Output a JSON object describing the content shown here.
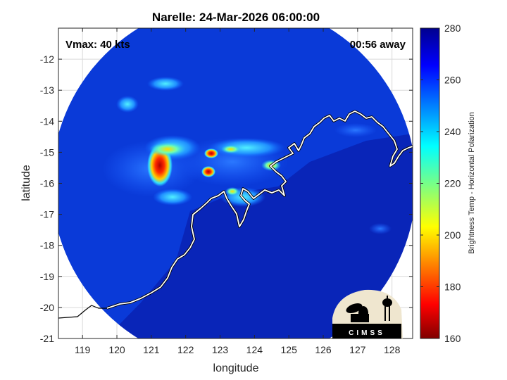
{
  "chart_data": {
    "type": "heatmap",
    "title": "Narelle: 24-Mar-2026 06:00:00",
    "xlabel": "longitude",
    "ylabel": "latitude",
    "xlim": [
      118.3,
      128.6
    ],
    "ylim": [
      -21,
      -11
    ],
    "x_ticks": [
      119,
      120,
      121,
      122,
      123,
      124,
      125,
      126,
      127,
      128
    ],
    "y_ticks": [
      -12,
      -13,
      -14,
      -15,
      -16,
      -17,
      -18,
      -19,
      -20,
      -21
    ],
    "colorbar": {
      "label": "Brightness Temp - Horizontal Polarization",
      "min": 160,
      "max": 280,
      "ticks": [
        160,
        180,
        200,
        220,
        240,
        260,
        280
      ],
      "colormap": "jet"
    },
    "annotations": {
      "vmax": "Vmax: 40 kts",
      "time_away": "00:56 away"
    },
    "swath": {
      "center_lon": 123.4,
      "center_lat": -16.0,
      "radius_deg": 5.3
    },
    "features": [
      {
        "name": "cold core west",
        "lon": 121.2,
        "lat": -15.5,
        "value": 175
      },
      {
        "name": "band north",
        "lon": 121.0,
        "lat": -15.0,
        "value": 215
      },
      {
        "name": "cell central",
        "lon": 122.6,
        "lat": -15.8,
        "value": 190
      },
      {
        "name": "cell east",
        "lon": 123.2,
        "lat": -15.0,
        "value": 205
      },
      {
        "name": "convection northwest",
        "lon": 120.2,
        "lat": -13.5,
        "value": 235
      },
      {
        "name": "convection north",
        "lon": 121.6,
        "lat": -12.8,
        "value": 240
      }
    ],
    "grid": true
  },
  "logo": {
    "text": "CIMSS"
  },
  "colors": {
    "swath_base": "#0a3ad8",
    "land": "#0a1a9a",
    "coast": "#ffffff",
    "coast_outline": "#000000",
    "logo_bg": "#efe6cf"
  }
}
